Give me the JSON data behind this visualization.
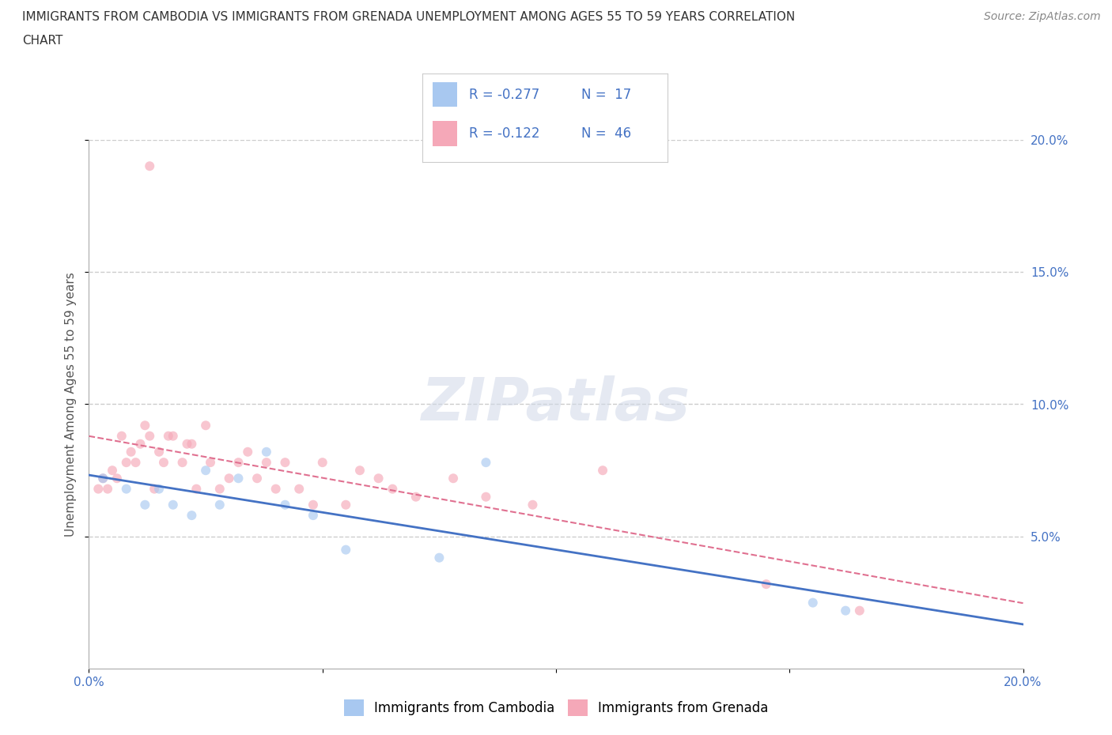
{
  "title_line1": "IMMIGRANTS FROM CAMBODIA VS IMMIGRANTS FROM GRENADA UNEMPLOYMENT AMONG AGES 55 TO 59 YEARS CORRELATION",
  "title_line2": "CHART",
  "source": "Source: ZipAtlas.com",
  "ylabel": "Unemployment Among Ages 55 to 59 years",
  "xlim": [
    0.0,
    0.2
  ],
  "ylim": [
    0.0,
    0.2
  ],
  "xticks": [
    0.0,
    0.2
  ],
  "xticklabels": [
    "0.0%",
    "20.0%"
  ],
  "yticks": [
    0.05,
    0.1,
    0.15,
    0.2
  ],
  "yticklabels": [
    "5.0%",
    "10.0%",
    "15.0%",
    "20.0%"
  ],
  "grid_yticks": [
    0.05,
    0.1,
    0.15,
    0.2
  ],
  "grid_color": "#cccccc",
  "background_color": "#ffffff",
  "watermark": "ZIPatlas",
  "cambodia_color": "#a8c8f0",
  "grenada_color": "#f5a8b8",
  "cambodia_line_color": "#4472c4",
  "grenada_line_color": "#e07090",
  "scatter_alpha": 0.65,
  "cambodia_x": [
    0.003,
    0.008,
    0.012,
    0.015,
    0.018,
    0.022,
    0.025,
    0.028,
    0.032,
    0.038,
    0.042,
    0.048,
    0.055,
    0.075,
    0.085,
    0.155,
    0.162
  ],
  "cambodia_y": [
    0.072,
    0.068,
    0.062,
    0.068,
    0.062,
    0.058,
    0.075,
    0.062,
    0.072,
    0.082,
    0.062,
    0.058,
    0.045,
    0.042,
    0.078,
    0.025,
    0.022
  ],
  "grenada_x": [
    0.002,
    0.003,
    0.004,
    0.005,
    0.006,
    0.007,
    0.008,
    0.009,
    0.01,
    0.011,
    0.012,
    0.013,
    0.013,
    0.014,
    0.015,
    0.016,
    0.017,
    0.018,
    0.02,
    0.021,
    0.022,
    0.023,
    0.025,
    0.026,
    0.028,
    0.03,
    0.032,
    0.034,
    0.036,
    0.038,
    0.04,
    0.042,
    0.045,
    0.048,
    0.05,
    0.055,
    0.058,
    0.062,
    0.065,
    0.07,
    0.078,
    0.085,
    0.095,
    0.11,
    0.145,
    0.165
  ],
  "grenada_y": [
    0.068,
    0.072,
    0.068,
    0.075,
    0.072,
    0.088,
    0.078,
    0.082,
    0.078,
    0.085,
    0.092,
    0.088,
    0.19,
    0.068,
    0.082,
    0.078,
    0.088,
    0.088,
    0.078,
    0.085,
    0.085,
    0.068,
    0.092,
    0.078,
    0.068,
    0.072,
    0.078,
    0.082,
    0.072,
    0.078,
    0.068,
    0.078,
    0.068,
    0.062,
    0.078,
    0.062,
    0.075,
    0.072,
    0.068,
    0.065,
    0.072,
    0.065,
    0.062,
    0.075,
    0.032,
    0.022
  ],
  "title_fontsize": 11,
  "axis_label_fontsize": 11,
  "tick_fontsize": 11,
  "legend_fontsize": 12,
  "source_fontsize": 10,
  "marker_size": 75,
  "legend_label1": "Immigrants from Cambodia",
  "legend_label2": "Immigrants from Grenada",
  "top_legend_R1": "R = -0.277",
  "top_legend_N1": "N =  17",
  "top_legend_R2": "R = -0.122",
  "top_legend_N2": "N =  46"
}
